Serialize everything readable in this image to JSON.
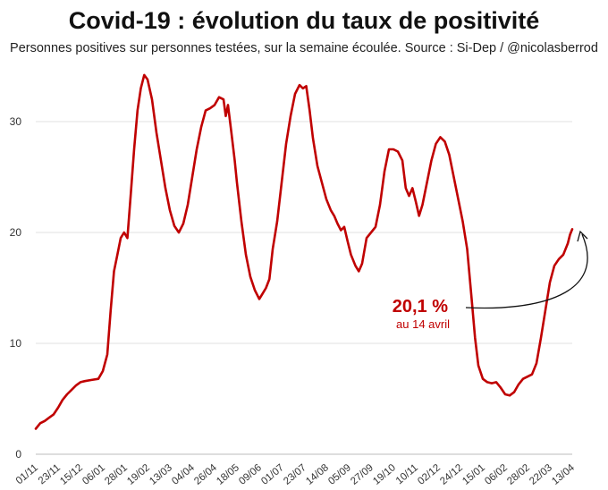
{
  "header": {
    "title": "Covid-19 : évolution du taux de positivité",
    "subtitle": "Personnes positives sur personnes testées, sur la semaine écoulée. Source : Si-Dep / @nicolasberrod"
  },
  "chart_data": {
    "type": "line",
    "title": "Covid-19 : évolution du taux de positivité",
    "subtitle": "Personnes positives sur personnes testées, sur la semaine écoulée. Source : Si-Dep / @nicolasberrod",
    "ylim": [
      0,
      34.5
    ],
    "yticks": [
      0,
      10,
      20,
      30
    ],
    "grid": true,
    "color": "#c00000",
    "categories": [
      "01/11",
      "23/11",
      "15/12",
      "06/01",
      "28/01",
      "19/02",
      "13/03",
      "04/04",
      "26/04",
      "18/05",
      "09/06",
      "01/07",
      "23/07",
      "14/08",
      "05/09",
      "27/09",
      "19/10",
      "10/11",
      "02/12",
      "24/12",
      "15/01",
      "06/02",
      "28/02",
      "22/03",
      "13/04"
    ],
    "series": [
      {
        "values": [
          [
            0,
            2.3
          ],
          [
            0.2,
            2.8
          ],
          [
            0.4,
            3.0
          ],
          [
            0.6,
            3.3
          ],
          [
            0.8,
            3.6
          ],
          [
            1.0,
            4.2
          ],
          [
            1.2,
            4.9
          ],
          [
            1.4,
            5.4
          ],
          [
            1.6,
            5.8
          ],
          [
            1.8,
            6.2
          ],
          [
            2.0,
            6.5
          ],
          [
            2.2,
            6.6
          ],
          [
            2.5,
            6.7
          ],
          [
            2.8,
            6.8
          ],
          [
            3.0,
            7.5
          ],
          [
            3.2,
            9.0
          ],
          [
            3.35,
            13.0
          ],
          [
            3.5,
            16.5
          ],
          [
            3.65,
            18.0
          ],
          [
            3.8,
            19.5
          ],
          [
            3.95,
            20.0
          ],
          [
            4.1,
            19.5
          ],
          [
            4.25,
            23.5
          ],
          [
            4.4,
            27.5
          ],
          [
            4.55,
            31.0
          ],
          [
            4.7,
            33.0
          ],
          [
            4.85,
            34.2
          ],
          [
            5.0,
            33.8
          ],
          [
            5.2,
            32.0
          ],
          [
            5.4,
            29.0
          ],
          [
            5.6,
            26.5
          ],
          [
            5.8,
            24.0
          ],
          [
            6.0,
            22.0
          ],
          [
            6.2,
            20.6
          ],
          [
            6.4,
            20.0
          ],
          [
            6.6,
            20.8
          ],
          [
            6.8,
            22.5
          ],
          [
            7.0,
            25.0
          ],
          [
            7.2,
            27.5
          ],
          [
            7.4,
            29.5
          ],
          [
            7.6,
            31.0
          ],
          [
            7.8,
            31.2
          ],
          [
            8.0,
            31.5
          ],
          [
            8.2,
            32.2
          ],
          [
            8.4,
            32.0
          ],
          [
            8.5,
            30.5
          ],
          [
            8.6,
            31.5
          ],
          [
            8.75,
            29.0
          ],
          [
            8.9,
            26.5
          ],
          [
            9.0,
            24.5
          ],
          [
            9.2,
            21.0
          ],
          [
            9.4,
            18.0
          ],
          [
            9.6,
            16.0
          ],
          [
            9.8,
            14.8
          ],
          [
            10.0,
            14.0
          ],
          [
            10.15,
            14.5
          ],
          [
            10.3,
            15.0
          ],
          [
            10.45,
            15.8
          ],
          [
            10.6,
            18.5
          ],
          [
            10.8,
            21.0
          ],
          [
            11.0,
            24.5
          ],
          [
            11.2,
            28.0
          ],
          [
            11.4,
            30.5
          ],
          [
            11.6,
            32.5
          ],
          [
            11.8,
            33.3
          ],
          [
            11.95,
            33.0
          ],
          [
            12.1,
            33.2
          ],
          [
            12.25,
            31.0
          ],
          [
            12.4,
            28.5
          ],
          [
            12.6,
            26.0
          ],
          [
            12.8,
            24.5
          ],
          [
            13.0,
            23.0
          ],
          [
            13.2,
            22.0
          ],
          [
            13.35,
            21.5
          ],
          [
            13.5,
            20.8
          ],
          [
            13.65,
            20.2
          ],
          [
            13.8,
            20.5
          ],
          [
            13.95,
            19.2
          ],
          [
            14.1,
            18.0
          ],
          [
            14.3,
            17.0
          ],
          [
            14.45,
            16.5
          ],
          [
            14.6,
            17.2
          ],
          [
            14.8,
            19.5
          ],
          [
            15.0,
            20.0
          ],
          [
            15.2,
            20.5
          ],
          [
            15.4,
            22.5
          ],
          [
            15.6,
            25.5
          ],
          [
            15.8,
            27.5
          ],
          [
            16.0,
            27.5
          ],
          [
            16.2,
            27.3
          ],
          [
            16.4,
            26.5
          ],
          [
            16.55,
            24.0
          ],
          [
            16.7,
            23.3
          ],
          [
            16.85,
            24.0
          ],
          [
            17.0,
            22.8
          ],
          [
            17.15,
            21.5
          ],
          [
            17.3,
            22.5
          ],
          [
            17.5,
            24.5
          ],
          [
            17.7,
            26.5
          ],
          [
            17.9,
            28.0
          ],
          [
            18.1,
            28.6
          ],
          [
            18.3,
            28.2
          ],
          [
            18.5,
            27.0
          ],
          [
            18.7,
            25.0
          ],
          [
            18.9,
            23.0
          ],
          [
            19.1,
            21.0
          ],
          [
            19.3,
            18.5
          ],
          [
            19.5,
            14.0
          ],
          [
            19.65,
            10.5
          ],
          [
            19.8,
            8.0
          ],
          [
            20.0,
            6.8
          ],
          [
            20.2,
            6.5
          ],
          [
            20.4,
            6.4
          ],
          [
            20.6,
            6.5
          ],
          [
            20.8,
            6.0
          ],
          [
            21.0,
            5.4
          ],
          [
            21.2,
            5.3
          ],
          [
            21.4,
            5.6
          ],
          [
            21.6,
            6.3
          ],
          [
            21.8,
            6.8
          ],
          [
            22.0,
            7.0
          ],
          [
            22.2,
            7.2
          ],
          [
            22.4,
            8.2
          ],
          [
            22.6,
            10.5
          ],
          [
            22.8,
            13.0
          ],
          [
            23.0,
            15.5
          ],
          [
            23.2,
            17.0
          ],
          [
            23.4,
            17.6
          ],
          [
            23.6,
            18.0
          ],
          [
            23.8,
            19.0
          ],
          [
            23.9,
            19.8
          ],
          [
            24.0,
            20.3
          ]
        ]
      }
    ],
    "annotation": {
      "value": "20,1 %",
      "date": "au 14 avril"
    }
  }
}
